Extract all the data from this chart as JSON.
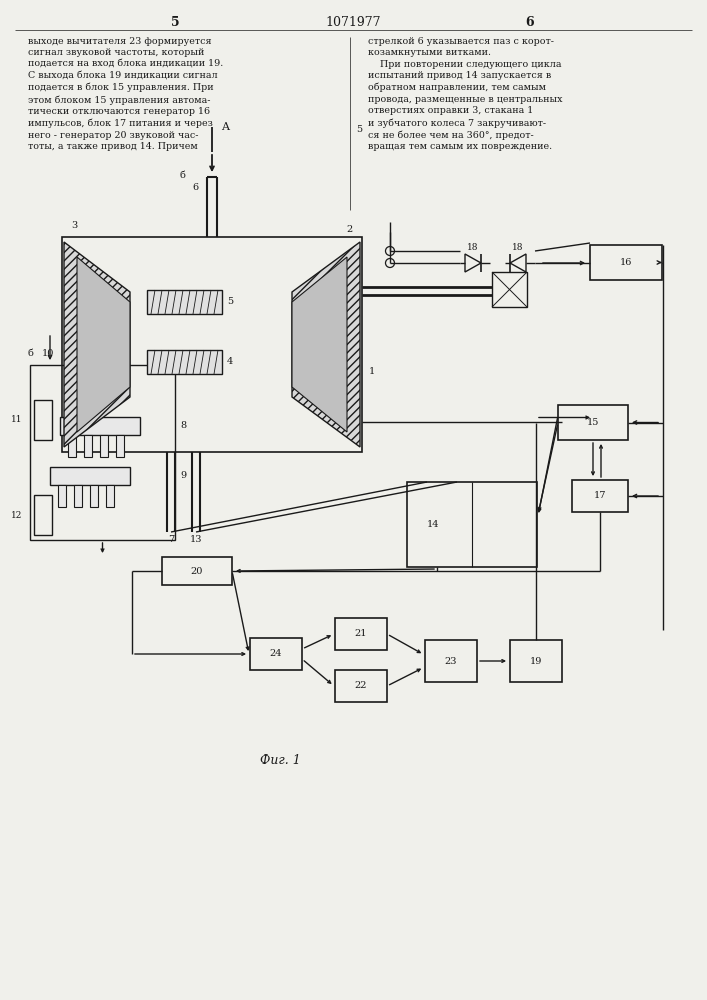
{
  "page_number_left": "5",
  "page_number_center": "1071977",
  "page_number_right": "6",
  "text_left": "выходе вычитателя 23 формируется\nсигнал звуковой частоты, который\nподается на вход блока индикации 19.\nС выхода блока 19 индикации сигнал\nподается в блок 15 управления. При\nэтом блоком 15 управления автома-\nтически отключаются генератор 16\nимпульсов, блок 17 питания и через\nнего - генератор 20 звуковой час-\nтоты, а также привод 14. Причем",
  "text_right": "стрелкой 6 указывается паз с корот-\nкозамкнутыми витками.\n    При повторении следующего цикла\nиспытаний привод 14 запускается в\nобратном направлении, тем самым\nпровода, размещенные в центральных\nотверстиях оправки 3, стакана 1\nи зубчатого колеса 7 закручивают-\nся не более чем на 360°, предот-\nвращая тем самым их повреждение.",
  "line_number_5": "5",
  "fig_label": "Фиг. 1",
  "bg_color": "#f0f0eb",
  "fg_color": "#1a1a1a"
}
